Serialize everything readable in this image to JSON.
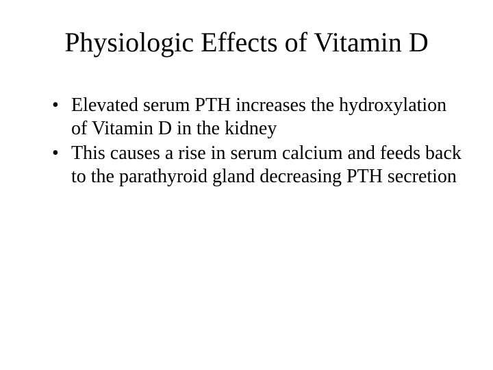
{
  "slide": {
    "title": "Physiologic Effects of Vitamin D",
    "bullets": [
      "Elevated serum PTH increases the hydroxylation of Vitamin D in the kidney",
      "This causes a rise in serum calcium and feeds back to the parathyroid gland decreasing PTH secretion"
    ],
    "style": {
      "background_color": "#ffffff",
      "text_color": "#000000",
      "font_family": "Times New Roman",
      "title_fontsize": 40,
      "body_fontsize": 28
    }
  }
}
